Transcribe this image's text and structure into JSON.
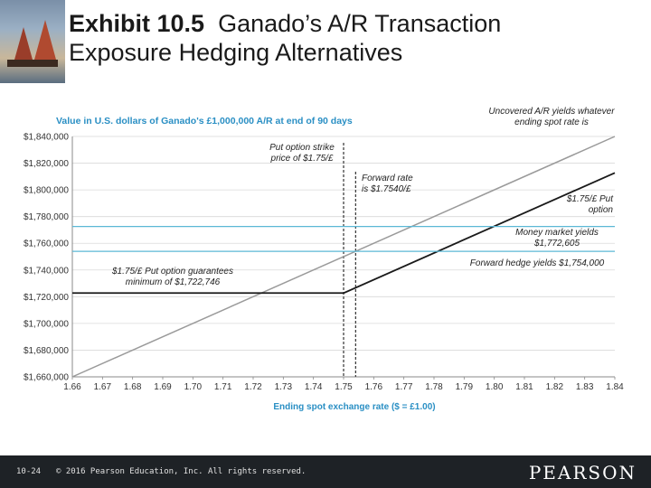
{
  "slide": {
    "title_bold": "Exhibit 10.5",
    "title_line1": "Ganado’s A/R Transaction",
    "title_line2": "Exposure Hedging Alternatives",
    "page_number": "10-24",
    "copyright": "© 2016 Pearson Education, Inc. All rights reserved.",
    "publisher_logo": "PEARSON"
  },
  "chart_data": {
    "type": "line",
    "title": "Value in U.S. dollars of Ganado's £1,000,000 A/R at end of 90 days",
    "xlabel": "Ending spot exchange rate ($ = £1.00)",
    "ylabel": "",
    "xlim": [
      1.66,
      1.84
    ],
    "ylim": [
      1660000,
      1840000
    ],
    "x_ticks": [
      "1.66",
      "1.67",
      "1.68",
      "1.69",
      "1.70",
      "1.71",
      "1.72",
      "1.73",
      "1.74",
      "1.75",
      "1.76",
      "1.77",
      "1.78",
      "1.79",
      "1.80",
      "1.81",
      "1.82",
      "1.83",
      "1.84"
    ],
    "y_ticks": [
      "$1,660,000",
      "$1,680,000",
      "$1,700,000",
      "$1,720,000",
      "$1,740,000",
      "$1,760,000",
      "$1,780,000",
      "$1,800,000",
      "$1,820,000",
      "$1,840,000"
    ],
    "grid": "horizontal",
    "colors": {
      "accent": "#2a8fc4",
      "unhedged": "#9a9a9a",
      "option": "#1a1a1a",
      "hedge_lines": "#5bb8d6",
      "strike_line": "#333333"
    },
    "series": [
      {
        "x": [
          1.66,
          1.84
        ],
        "y": [
          1660000,
          1840000
        ]
      },
      {
        "x": [
          1.66,
          1.75,
          1.84
        ],
        "y": [
          1722746,
          1722746,
          1812746
        ]
      },
      {
        "x": [
          1.66,
          1.84
        ],
        "y": [
          1772605,
          1772605
        ]
      },
      {
        "x": [
          1.66,
          1.84
        ],
        "y": [
          1754000,
          1754000
        ]
      }
    ],
    "vlines": [
      {
        "x": 1.75
      },
      {
        "x": 1.754
      }
    ],
    "annotations": [
      {
        "lines": [
          "Uncovered A/R yields whatever",
          "ending spot rate is"
        ]
      },
      {
        "lines": [
          "Put option strike",
          "price of $1.75/£"
        ]
      },
      {
        "lines": [
          "Forward rate",
          "is $1.7540/£"
        ]
      },
      {
        "lines": [
          "$1.75/£ Put",
          "option"
        ]
      },
      {
        "lines": [
          "Money market yields",
          "$1,772,605"
        ]
      },
      {
        "lines": [
          "Forward hedge yields $1,754,000"
        ]
      },
      {
        "lines": [
          "$1.75/£ Put option guarantees",
          "minimum of $1,722,746"
        ]
      }
    ]
  }
}
